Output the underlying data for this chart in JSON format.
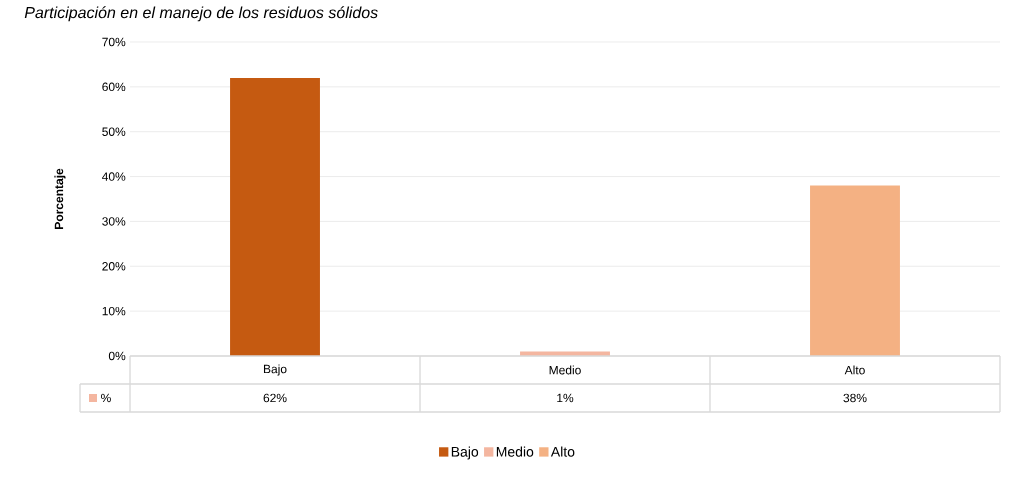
{
  "chart_data": {
    "type": "bar",
    "title": "Participación en el manejo de los residuos sólidos",
    "ylabel": "Porcentaje",
    "categories": [
      "Bajo",
      "Medio",
      "Alto"
    ],
    "series": [
      {
        "name": "%",
        "colors": [
          "#c55a11",
          "#f4b6a0",
          "#f4b183"
        ],
        "values": [
          62,
          1,
          38
        ],
        "value_labels": [
          "62%",
          "1%",
          "38%"
        ]
      }
    ],
    "ylim": [
      0,
      70
    ],
    "yticks": [
      {
        "value": 0,
        "label": "0%"
      },
      {
        "value": 10,
        "label": "10%"
      },
      {
        "value": 20,
        "label": "20%"
      },
      {
        "value": 30,
        "label": "30%"
      },
      {
        "value": 40,
        "label": "40%"
      },
      {
        "value": 50,
        "label": "50%"
      },
      {
        "value": 60,
        "label": "60%"
      },
      {
        "value": 70,
        "label": "70%"
      }
    ],
    "grid": "y",
    "legend": "bottom"
  }
}
